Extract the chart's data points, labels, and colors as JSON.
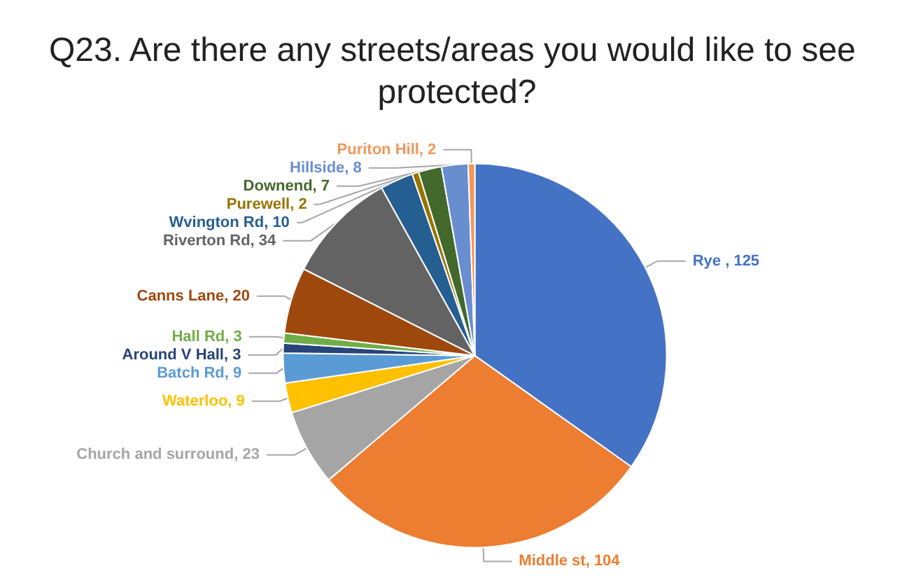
{
  "chart_data": {
    "type": "pie",
    "title": "Q23. Are there any streets/areas you would like to see protected?",
    "categories": [
      "Rye ",
      "Middle st",
      "Church and surround",
      "Waterloo",
      "Batch Rd",
      "Around V Hall",
      "Hall Rd",
      "Canns Lane",
      "Riverton Rd",
      "Wvington Rd",
      "Purewell",
      "Downend",
      "Hillside",
      "Puriton Hill"
    ],
    "values": [
      125,
      104,
      23,
      9,
      9,
      3,
      3,
      20,
      34,
      10,
      2,
      7,
      8,
      2
    ],
    "colors": [
      "#4472c4",
      "#ed7d31",
      "#a5a5a5",
      "#ffc000",
      "#5b9bd5",
      "#264478",
      "#70ad47",
      "#9e480e",
      "#636363",
      "#255e91",
      "#997300",
      "#43682b",
      "#698ed0",
      "#f1975a"
    ],
    "value_labels": [
      ", 125",
      ", 104",
      ", 23",
      ", 9",
      ", 9",
      ", 3",
      ", 3",
      ", 20",
      ", 34",
      ", 10",
      ", 2",
      ", 7",
      ", 8",
      ", 2"
    ],
    "legend": false
  }
}
